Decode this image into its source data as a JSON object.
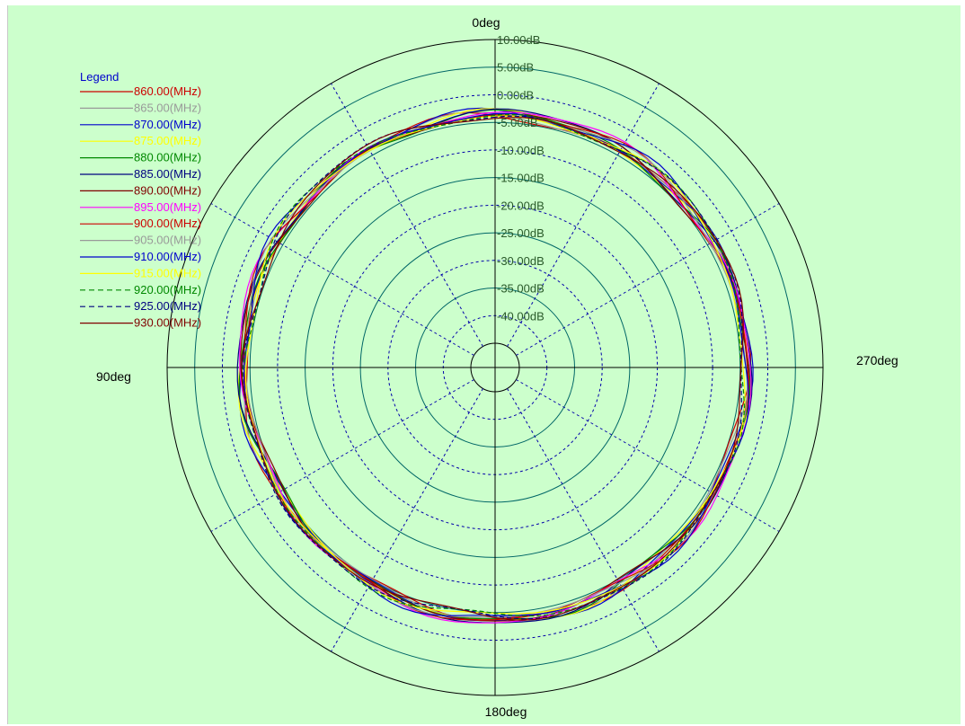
{
  "chart_data": {
    "type": "polar-line",
    "angle_labels": {
      "top": "0deg",
      "left": "90deg",
      "right": "270deg",
      "bottom": "180deg"
    },
    "angle_direction": "counterclockwise",
    "radial_ticks": [
      "10.00dB",
      "5.00dB",
      "0.00dB",
      "-5.00dB",
      "-10.00dB",
      "-15.00dB",
      "-20.00dB",
      "-25.00dB",
      "-30.00dB",
      "-35.00dB",
      "-40.00dB"
    ],
    "rlim": [
      -45,
      10
    ],
    "legend": {
      "title": "Legend",
      "placement": "top-left"
    },
    "series": [
      {
        "name": "860.00(MHz)",
        "color": "#cc0000",
        "dash": "solid",
        "base": -3.8,
        "amps": [
          0.6,
          0.3,
          0.4
        ],
        "phase": 0.0
      },
      {
        "name": "865.00(MHz)",
        "color": "#999999",
        "dash": "solid",
        "base": -3.9,
        "amps": [
          0.5,
          0.4,
          0.3
        ],
        "phase": 0.4
      },
      {
        "name": "870.00(MHz)",
        "color": "#0000cc",
        "dash": "solid",
        "base": -3.6,
        "amps": [
          0.7,
          0.3,
          0.4
        ],
        "phase": 0.8
      },
      {
        "name": "875.00(MHz)",
        "color": "#ffff00",
        "dash": "solid",
        "base": -3.7,
        "amps": [
          0.6,
          0.5,
          0.3
        ],
        "phase": 1.2
      },
      {
        "name": "880.00(MHz)",
        "color": "#008800",
        "dash": "solid",
        "base": -3.8,
        "amps": [
          0.5,
          0.4,
          0.5
        ],
        "phase": 1.6
      },
      {
        "name": "885.00(MHz)",
        "color": "#000080",
        "dash": "solid",
        "base": -3.5,
        "amps": [
          0.7,
          0.3,
          0.4
        ],
        "phase": 2.0
      },
      {
        "name": "890.00(MHz)",
        "color": "#800000",
        "dash": "solid",
        "base": -3.9,
        "amps": [
          0.6,
          0.4,
          0.3
        ],
        "phase": 2.4
      },
      {
        "name": "895.00(MHz)",
        "color": "#ff00ff",
        "dash": "solid",
        "base": -3.4,
        "amps": [
          0.7,
          0.4,
          0.4
        ],
        "phase": 2.8
      },
      {
        "name": "900.00(MHz)",
        "color": "#cc0000",
        "dash": "solid",
        "base": -3.7,
        "amps": [
          0.5,
          0.5,
          0.4
        ],
        "phase": 3.2
      },
      {
        "name": "905.00(MHz)",
        "color": "#999999",
        "dash": "solid",
        "base": -3.8,
        "amps": [
          0.6,
          0.3,
          0.3
        ],
        "phase": 3.6
      },
      {
        "name": "910.00(MHz)",
        "color": "#0000cc",
        "dash": "solid",
        "base": -3.5,
        "amps": [
          0.6,
          0.4,
          0.5
        ],
        "phase": 4.0
      },
      {
        "name": "915.00(MHz)",
        "color": "#ffff00",
        "dash": "solid",
        "base": -3.9,
        "amps": [
          0.5,
          0.4,
          0.3
        ],
        "phase": 4.4
      },
      {
        "name": "920.00(MHz)",
        "color": "#008800",
        "dash": "dashed",
        "base": -3.7,
        "amps": [
          0.6,
          0.5,
          0.4
        ],
        "phase": 4.8
      },
      {
        "name": "925.00(MHz)",
        "color": "#000080",
        "dash": "dashed",
        "base": -3.6,
        "amps": [
          0.7,
          0.3,
          0.4
        ],
        "phase": 5.2
      },
      {
        "name": "930.00(MHz)",
        "color": "#800000",
        "dash": "solid",
        "base": -3.8,
        "amps": [
          0.6,
          0.4,
          0.3
        ],
        "phase": 5.6
      }
    ]
  },
  "colors": {
    "background": "#ccffcc",
    "solid_ring": "#006666",
    "dashed_ring": "#0000aa",
    "axis": "#000000"
  }
}
